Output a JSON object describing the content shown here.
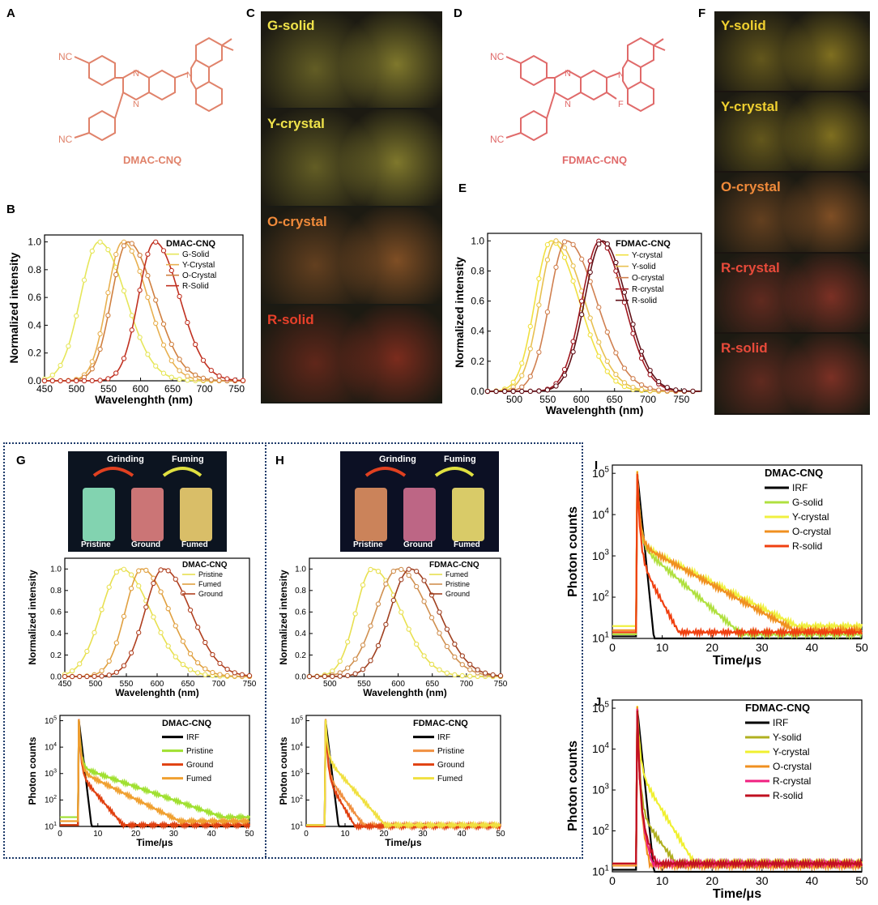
{
  "panel_labels": {
    "A": "A",
    "B": "B",
    "C": "C",
    "D": "D",
    "E": "E",
    "F": "F",
    "G": "G",
    "H": "H",
    "I": "I",
    "J": "J"
  },
  "molecules": {
    "left": {
      "name": "DMAC-CNQ",
      "nc_top": "NC",
      "nc_bottom": "NC",
      "n1": "N",
      "n2": "N",
      "n3": "N"
    },
    "right": {
      "name": "FDMAC-CNQ",
      "nc_top": "NC",
      "nc_bottom": "NC",
      "n1": "N",
      "n2": "N",
      "n3": "N",
      "f": "F"
    }
  },
  "photos_c": [
    {
      "label": "G-solid",
      "color": "#f0e34a"
    },
    {
      "label": "Y-crystal",
      "color": "#f0e34a"
    },
    {
      "label": "O-crystal",
      "color": "#f08a3a"
    },
    {
      "label": "R-solid",
      "color": "#e8402a"
    }
  ],
  "photos_f": [
    {
      "label": "Y-solid",
      "color": "#f0d030"
    },
    {
      "label": "Y-crystal",
      "color": "#f0d030"
    },
    {
      "label": "O-crystal",
      "color": "#f08a3a"
    },
    {
      "label": "R-crystal",
      "color": "#e84a3a"
    },
    {
      "label": "R-solid",
      "color": "#e84a3a"
    }
  ],
  "vials_g": {
    "grinding": "Grinding",
    "fuming": "Fuming",
    "v1": "Pristine",
    "v2": "Ground",
    "v3": "Fumed"
  },
  "vials_h": {
    "grinding": "Grinding",
    "fuming": "Fuming",
    "v1": "Pristine",
    "v2": "Ground",
    "v3": "Fumed"
  },
  "chart_data": [
    {
      "id": "B",
      "type": "line",
      "title": "DMAC-CNQ",
      "xlabel": "Wavelenghth (nm)",
      "ylabel": "Normalized intensity",
      "xlim": [
        450,
        760
      ],
      "ylim": [
        0,
        1.05
      ],
      "xticks": [
        450,
        500,
        550,
        600,
        650,
        700,
        750
      ],
      "yticks": [
        0.0,
        0.2,
        0.4,
        0.6,
        0.8,
        1.0
      ],
      "series": [
        {
          "name": "G-Solid",
          "color": "#e6e65a",
          "peak": 535,
          "wl": 48,
          "wr": 70
        },
        {
          "name": "Y-Crystal",
          "color": "#e8b050",
          "peak": 572,
          "wl": 40,
          "wr": 65
        },
        {
          "name": "O-Crystal",
          "color": "#d08040",
          "peak": 580,
          "wl": 42,
          "wr": 70
        },
        {
          "name": "R-Solid",
          "color": "#c03020",
          "peak": 622,
          "wl": 42,
          "wr": 65
        }
      ]
    },
    {
      "id": "E",
      "type": "line",
      "title": "FDMAC-CNQ",
      "xlabel": "Wavelenghth (nm)",
      "ylabel": "Normalized intensity",
      "xlim": [
        460,
        780
      ],
      "ylim": [
        0,
        1.05
      ],
      "xticks": [
        500,
        550,
        600,
        650,
        700,
        750
      ],
      "yticks": [
        0.0,
        0.2,
        0.4,
        0.6,
        0.8,
        1.0
      ],
      "series": [
        {
          "name": "Y-crystal",
          "color": "#f0e040",
          "peak": 555,
          "wl": 40,
          "wr": 70
        },
        {
          "name": "Y-solid",
          "color": "#e8c050",
          "peak": 562,
          "wl": 40,
          "wr": 72
        },
        {
          "name": "O-crystal",
          "color": "#d08050",
          "peak": 578,
          "wl": 42,
          "wr": 75
        },
        {
          "name": "R-crystal",
          "color": "#a01820",
          "peak": 628,
          "wl": 45,
          "wr": 60
        },
        {
          "name": "R-solid",
          "color": "#601018",
          "peak": 632,
          "wl": 45,
          "wr": 60
        }
      ]
    },
    {
      "id": "G1",
      "type": "line",
      "title": "DMAC-CNQ",
      "xlabel": "Wavelenghth (nm)",
      "ylabel": "Normalized intensity",
      "xlim": [
        450,
        750
      ],
      "ylim": [
        0,
        1.1
      ],
      "xticks": [
        450,
        500,
        550,
        600,
        650,
        700,
        750
      ],
      "yticks": [
        0.0,
        0.2,
        0.4,
        0.6,
        0.8,
        1.0
      ],
      "series": [
        {
          "name": "Pristine",
          "color": "#e8e050",
          "peak": 542,
          "wl": 55,
          "wr": 80
        },
        {
          "name": "Fumed",
          "color": "#e0a040",
          "peak": 575,
          "wl": 45,
          "wr": 75
        },
        {
          "name": "Ground",
          "color": "#b04020",
          "peak": 610,
          "wl": 50,
          "wr": 75
        }
      ]
    },
    {
      "id": "H1",
      "type": "line",
      "title": "FDMAC-CNQ",
      "xlabel": "Wavelenghth (nm)",
      "ylabel": "Normalized intensity",
      "xlim": [
        470,
        750
      ],
      "ylim": [
        0,
        1.1
      ],
      "xticks": [
        500,
        550,
        600,
        650,
        700,
        750
      ],
      "yticks": [
        0.0,
        0.2,
        0.4,
        0.6,
        0.8,
        1.0
      ],
      "series": [
        {
          "name": "Fumed",
          "color": "#e8e050",
          "peak": 562,
          "wl": 40,
          "wr": 70
        },
        {
          "name": "Pristine",
          "color": "#d09050",
          "peak": 600,
          "wl": 55,
          "wr": 75
        },
        {
          "name": "Ground",
          "color": "#a04020",
          "peak": 618,
          "wl": 50,
          "wr": 70
        }
      ]
    },
    {
      "id": "G2",
      "type": "line",
      "title": "DMAC-CNQ",
      "xlabel": "Time/μs",
      "ylabel": "Photon counts",
      "xlim": [
        0,
        50
      ],
      "ylog": true,
      "ylim": [
        1,
        5.2
      ],
      "xticks": [
        0,
        10,
        20,
        30,
        40,
        50
      ],
      "yticks_exp": [
        1,
        2,
        3,
        4,
        5
      ],
      "series": [
        {
          "name": "IRF",
          "color": "#000000",
          "amp": 2.9,
          "tau": 3,
          "irf": true
        },
        {
          "name": "Pristine",
          "color": "#a0e030",
          "amp": 3.25,
          "tau": 40,
          "floor": 1.35
        },
        {
          "name": "Ground",
          "color": "#e04010",
          "amp": 3.0,
          "tau": 12,
          "floor": 1.05
        },
        {
          "name": "Fumed",
          "color": "#f0a030",
          "amp": 3.1,
          "tau": 28,
          "floor": 1.2
        }
      ]
    },
    {
      "id": "H2",
      "type": "line",
      "title": "FDMAC-CNQ",
      "xlabel": "Time/μs",
      "ylabel": "Photon counts",
      "xlim": [
        0,
        50
      ],
      "ylog": true,
      "ylim": [
        1,
        5.2
      ],
      "xticks": [
        0,
        10,
        20,
        30,
        40,
        50
      ],
      "yticks_exp": [
        1,
        2,
        3,
        4,
        5
      ],
      "series": [
        {
          "name": "IRF",
          "color": "#000000",
          "amp": 2.9,
          "tau": 3,
          "irf": true
        },
        {
          "name": "Pristine",
          "color": "#f09040",
          "amp": 3.0,
          "tau": 10,
          "floor": 1.05
        },
        {
          "name": "Ground",
          "color": "#e04010",
          "amp": 2.9,
          "tau": 8,
          "floor": 1.0
        },
        {
          "name": "Fumed",
          "color": "#f0e040",
          "amp": 3.6,
          "tau": 12,
          "floor": 1.05
        }
      ]
    },
    {
      "id": "I",
      "type": "line",
      "title": "DMAC-CNQ",
      "xlabel": "Time/μs",
      "ylabel": "Photon counts",
      "xlim": [
        0,
        50
      ],
      "ylog": true,
      "ylim": [
        1,
        5.2
      ],
      "xticks": [
        0,
        10,
        20,
        30,
        40,
        50
      ],
      "yticks_exp": [
        1,
        2,
        3,
        4,
        5
      ],
      "series": [
        {
          "name": "IRF",
          "color": "#000000",
          "amp": 3.0,
          "tau": 3,
          "irf": true
        },
        {
          "name": "G-solid",
          "color": "#b0e040",
          "amp": 3.3,
          "tau": 19,
          "floor": 1.1
        },
        {
          "name": "Y-crystal",
          "color": "#f0f040",
          "amp": 3.3,
          "tau": 32,
          "floor": 1.3
        },
        {
          "name": "O-crystal",
          "color": "#f09020",
          "amp": 3.3,
          "tau": 30,
          "floor": 1.2
        },
        {
          "name": "R-solid",
          "color": "#f04010",
          "amp": 3.0,
          "tau": 9,
          "floor": 1.15
        }
      ]
    },
    {
      "id": "J",
      "type": "line",
      "title": "FDMAC-CNQ",
      "xlabel": "Time/μs",
      "ylabel": "Photon counts",
      "xlim": [
        0,
        50
      ],
      "ylog": true,
      "ylim": [
        1,
        5.2
      ],
      "xticks": [
        0,
        10,
        20,
        30,
        40,
        50
      ],
      "yticks_exp": [
        1,
        2,
        3,
        4,
        5
      ],
      "series": [
        {
          "name": "IRF",
          "color": "#000000",
          "amp": 2.8,
          "tau": 3,
          "irf": true
        },
        {
          "name": "Y-solid",
          "color": "#b0b020",
          "amp": 2.5,
          "tau": 12,
          "floor": 1.2
        },
        {
          "name": "Y-crystal",
          "color": "#f0f030",
          "amp": 3.5,
          "tau": 10,
          "floor": 1.2
        },
        {
          "name": "O-crystal",
          "color": "#f09020",
          "amp": 2.4,
          "tau": 4,
          "floor": 1.15
        },
        {
          "name": "R-crystal",
          "color": "#f02080",
          "amp": 2.4,
          "tau": 5,
          "floor": 1.2
        },
        {
          "name": "R-solid",
          "color": "#c01020",
          "amp": 2.3,
          "tau": 7,
          "floor": 1.2
        }
      ]
    }
  ]
}
